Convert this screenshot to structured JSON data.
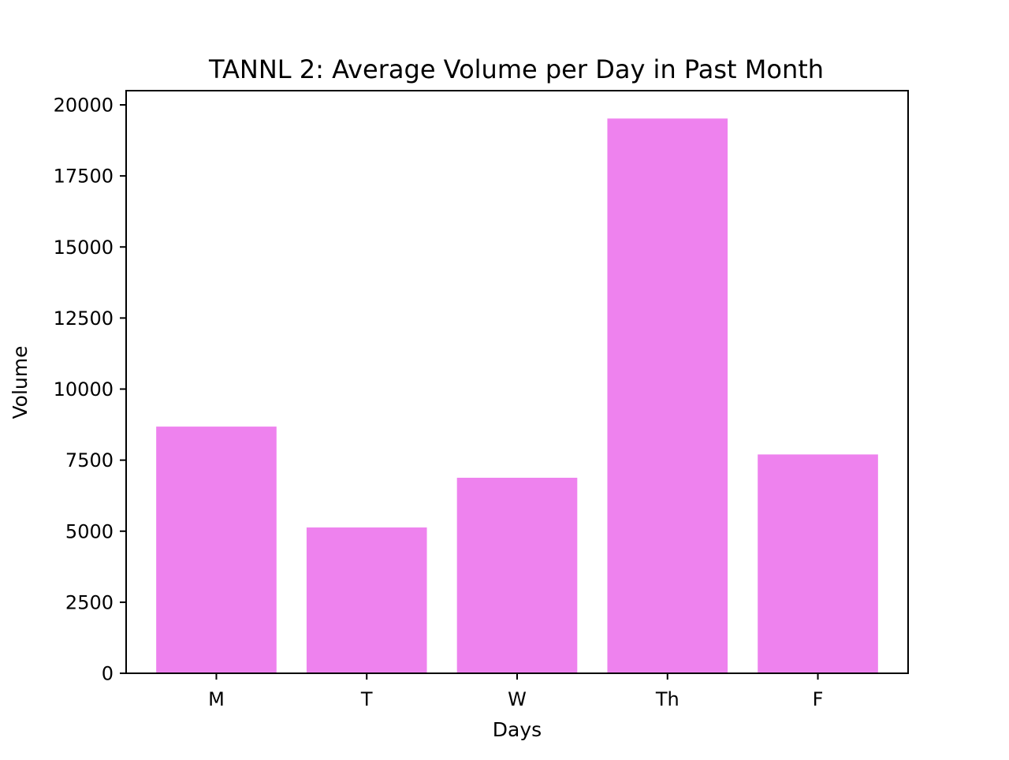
{
  "chart_data": {
    "type": "bar",
    "title": "TANNL 2: Average Volume per Day in Past Month",
    "xlabel": "Days",
    "ylabel": "Volume",
    "categories": [
      "M",
      "T",
      "W",
      "Th",
      "F"
    ],
    "values": [
      8680,
      5130,
      6880,
      19520,
      7700
    ],
    "ylim": [
      0,
      20500
    ],
    "yticks": [
      0,
      2500,
      5000,
      7500,
      10000,
      12500,
      15000,
      17500,
      20000
    ],
    "ytick_labels": [
      "0",
      "2500",
      "5000",
      "7500",
      "10000",
      "12500",
      "15000",
      "17500",
      "20000"
    ],
    "grid": false,
    "bar_color": "#EE82EE"
  }
}
